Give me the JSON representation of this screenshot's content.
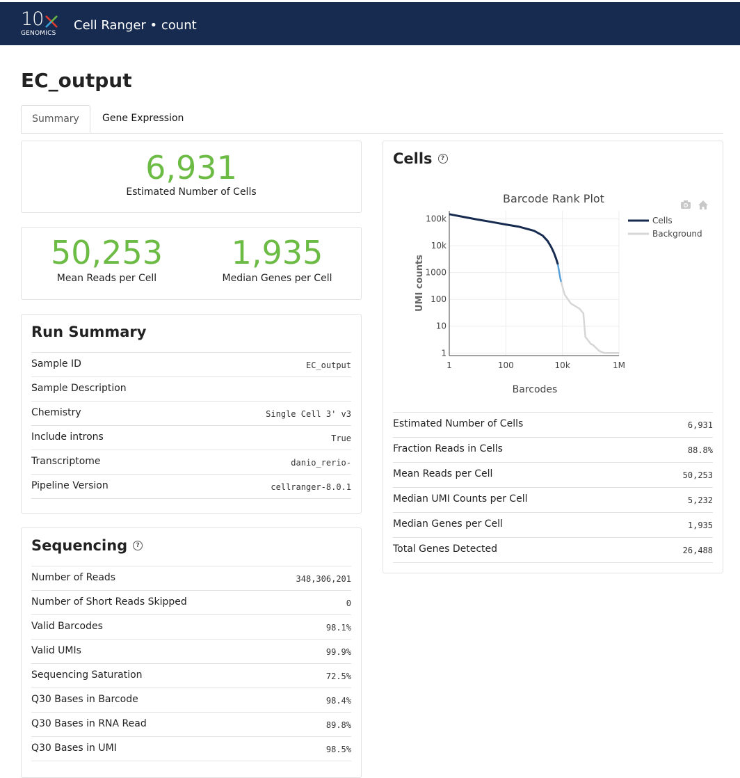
{
  "header": {
    "logo_number": "10",
    "logo_subtitle": "GENOMICS",
    "app_title": "Cell Ranger • count"
  },
  "page": {
    "title": "EC_output"
  },
  "tabs": [
    {
      "label": "Summary",
      "active": true
    },
    {
      "label": "Gene Expression",
      "active": false
    }
  ],
  "hero_cells": {
    "value": "6,931",
    "label": "Estimated Number of Cells"
  },
  "hero_pair": [
    {
      "value": "50,253",
      "label": "Mean Reads per Cell"
    },
    {
      "value": "1,935",
      "label": "Median Genes per Cell"
    }
  ],
  "run_summary": {
    "title": "Run Summary",
    "rows": [
      {
        "label": "Sample ID",
        "value": "EC_output"
      },
      {
        "label": "Sample Description",
        "value": ""
      },
      {
        "label": "Chemistry",
        "value": "Single Cell 3' v3"
      },
      {
        "label": "Include introns",
        "value": "True"
      },
      {
        "label": "Transcriptome",
        "value": "danio_rerio-"
      },
      {
        "label": "Pipeline Version",
        "value": "cellranger-8.0.1"
      }
    ]
  },
  "sequencing": {
    "title": "Sequencing",
    "rows": [
      {
        "label": "Number of Reads",
        "value": "348,306,201"
      },
      {
        "label": "Number of Short Reads Skipped",
        "value": "0"
      },
      {
        "label": "Valid Barcodes",
        "value": "98.1%"
      },
      {
        "label": "Valid UMIs",
        "value": "99.9%"
      },
      {
        "label": "Sequencing Saturation",
        "value": "72.5%"
      },
      {
        "label": "Q30 Bases in Barcode",
        "value": "98.4%"
      },
      {
        "label": "Q30 Bases in RNA Read",
        "value": "89.8%"
      },
      {
        "label": "Q30 Bases in UMI",
        "value": "98.5%"
      }
    ]
  },
  "cells": {
    "title": "Cells",
    "rows": [
      {
        "label": "Estimated Number of Cells",
        "value": "6,931"
      },
      {
        "label": "Fraction Reads in Cells",
        "value": "88.8%"
      },
      {
        "label": "Mean Reads per Cell",
        "value": "50,253"
      },
      {
        "label": "Median UMI Counts per Cell",
        "value": "5,232"
      },
      {
        "label": "Median Genes per Cell",
        "value": "1,935"
      },
      {
        "label": "Total Genes Detected",
        "value": "26,488"
      }
    ]
  },
  "chart_data": {
    "type": "line",
    "title": "Barcode Rank Plot",
    "xlabel": "Barcodes",
    "ylabel": "UMI counts",
    "x_scale": "log",
    "y_scale": "log",
    "xlim": [
      1,
      1000000
    ],
    "ylim": [
      0.8,
      200000
    ],
    "x_ticks": [
      "1",
      "100",
      "10k",
      "1M"
    ],
    "y_ticks": [
      "1",
      "10",
      "100",
      "1000",
      "10k",
      "100k"
    ],
    "grid": true,
    "legend_position": "top-right",
    "colors": {
      "cells": "#162b4f",
      "mixed": "#5aa0d8",
      "background": "#d6d6d6"
    },
    "series": [
      {
        "name": "Cells",
        "x": [
          1,
          3,
          10,
          30,
          100,
          300,
          1000,
          2000,
          3000,
          4000,
          5000,
          6000,
          6931
        ],
        "y": [
          150000,
          120000,
          95000,
          78000,
          62000,
          51000,
          36000,
          24000,
          15000,
          9000,
          5500,
          3300,
          2000
        ]
      },
      {
        "name": "",
        "x": [
          6931,
          7500,
          8200,
          9000
        ],
        "y": [
          2000,
          1200,
          700,
          450
        ]
      },
      {
        "name": "Background",
        "x": [
          9000,
          12000,
          20000,
          40000,
          55000,
          60000,
          65000,
          80000,
          100000,
          120000,
          160000,
          200000,
          300000,
          500000,
          1000000
        ],
        "y": [
          450,
          150,
          70,
          45,
          30,
          10,
          4,
          3,
          2.2,
          2,
          1.5,
          1.2,
          1,
          1,
          1
        ]
      }
    ]
  }
}
